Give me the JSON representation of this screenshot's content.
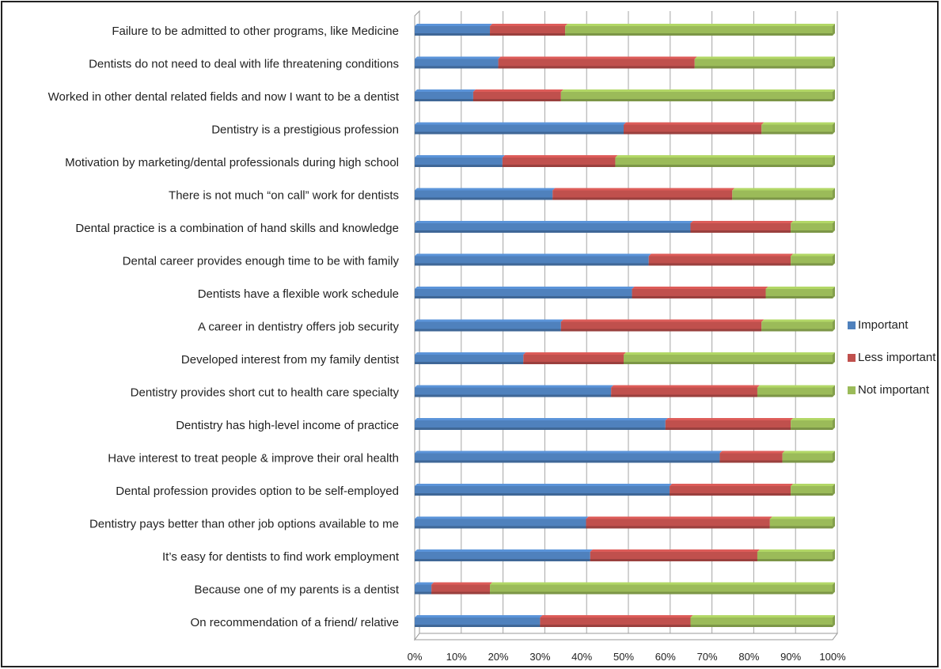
{
  "chart_data": {
    "type": "bar",
    "orientation": "horizontal",
    "stacked": "percent",
    "categories": [
      "Failure to be admitted to other programs, like Medicine",
      "Dentists do not need to deal with life threatening conditions ",
      "Worked in other dental related fields and now I want to be a dentist",
      "Dentistry is a prestigious profession",
      "Motivation by marketing/dental professionals during high school",
      "There is not much “on call” work for dentists",
      "Dental practice is a combination of hand skills and knowledge",
      "Dental career provides enough time to be with family",
      "Dentists have a flexible work schedule",
      "A career in dentistry offers job security",
      "Developed interest from my family dentist",
      "Dentistry provides short cut to health care specialty",
      "Dentistry has high-level income of practice ",
      "Have interest to treat people & improve their oral health",
      "Dental profession provides option to be self-employed",
      "Dentistry pays better than other job options available to me",
      "It’s easy for dentists to find work employment",
      "Because one of my parents is a dentist",
      "On recommendation of a friend/ relative"
    ],
    "series": [
      {
        "name": "Important",
        "color": "#4f81bd",
        "values": [
          18,
          20,
          14,
          50,
          21,
          33,
          66,
          56,
          52,
          35,
          26,
          47,
          60,
          73,
          61,
          41,
          42,
          4,
          30
        ]
      },
      {
        "name": "Less important",
        "color": "#c0504d",
        "values": [
          18,
          47,
          21,
          33,
          27,
          43,
          24,
          34,
          32,
          48,
          24,
          35,
          30,
          15,
          29,
          44,
          40,
          14,
          36
        ]
      },
      {
        "name": "Not important",
        "color": "#9bbb59",
        "values": [
          64,
          33,
          65,
          17,
          52,
          24,
          10,
          10,
          16,
          17,
          50,
          18,
          10,
          12,
          10,
          15,
          18,
          82,
          34
        ]
      }
    ],
    "x_ticks": [
      "0%",
      "10%",
      "20%",
      "30%",
      "40%",
      "50%",
      "60%",
      "70%",
      "80%",
      "90%",
      "100%"
    ],
    "xlim": [
      0,
      100
    ],
    "grid": true,
    "legend_position": "right"
  }
}
